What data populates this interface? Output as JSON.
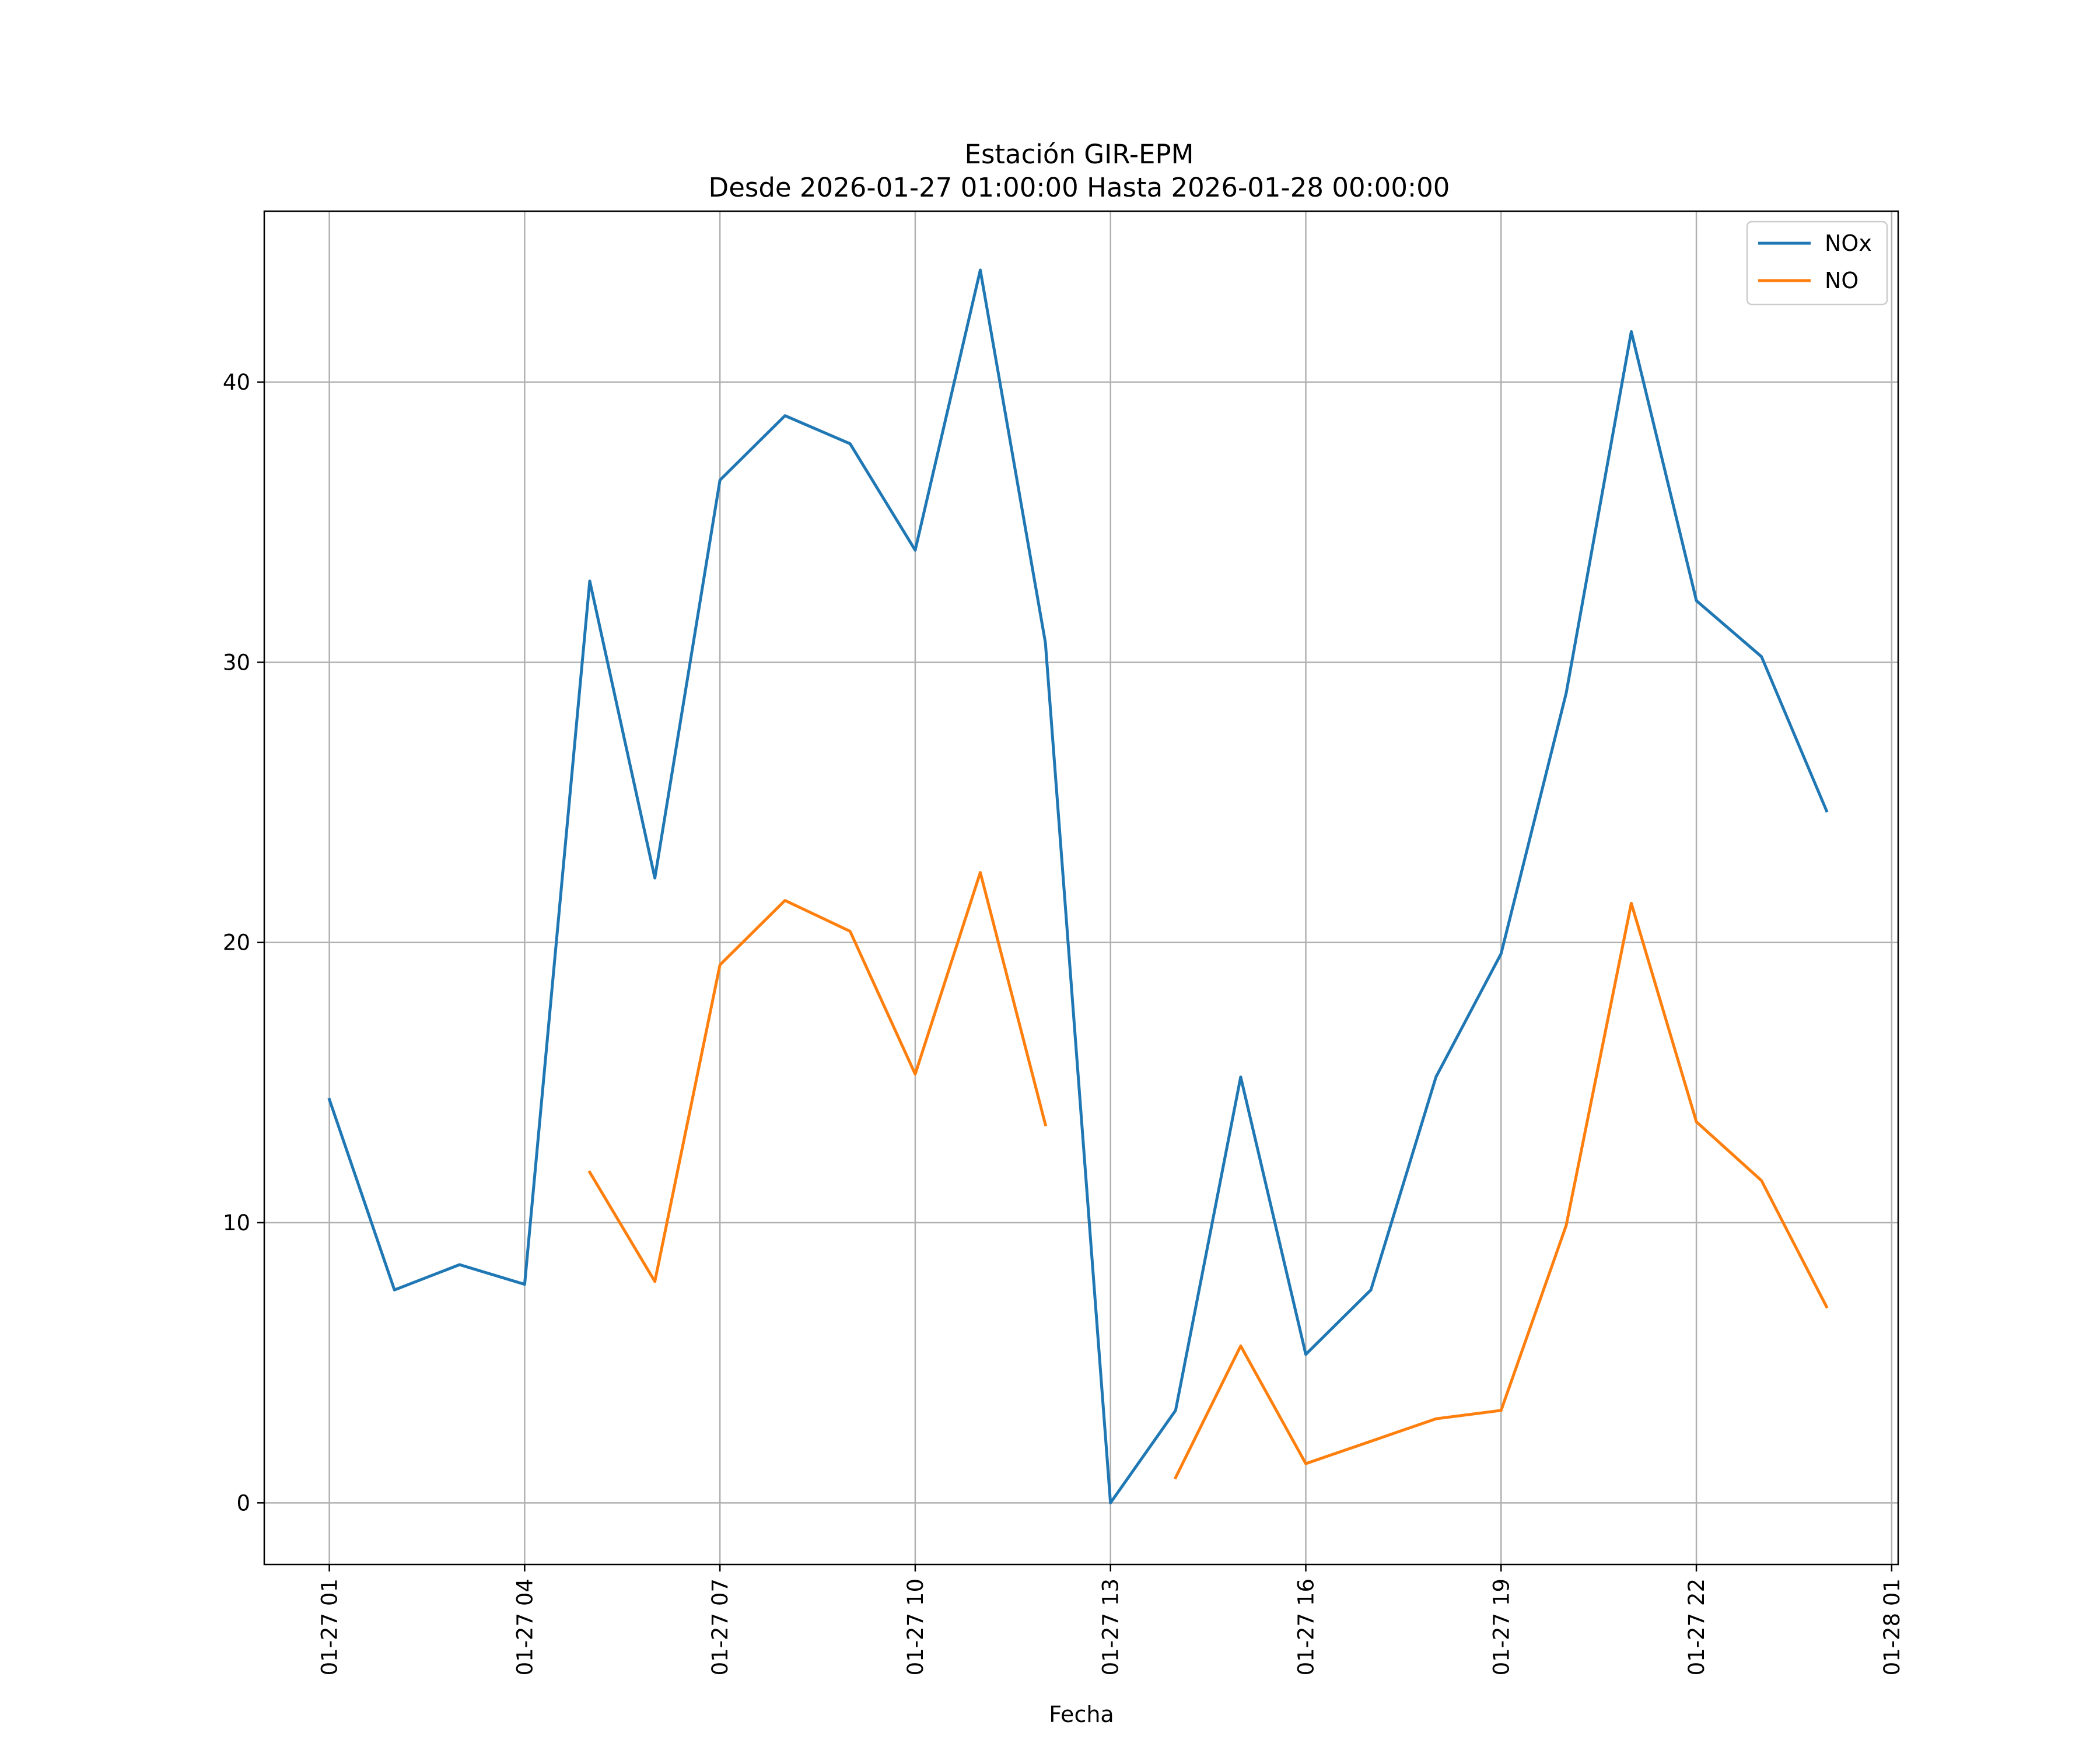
{
  "chart_data": {
    "type": "line",
    "title": "Estación GIR-EPM",
    "subtitle": "Desde 2026-01-27 01:00:00 Hasta 2026-01-28 00:00:00",
    "xlabel": "Fecha",
    "ylabel": "",
    "x": [
      "2026-01-27 01:00",
      "2026-01-27 02:00",
      "2026-01-27 03:00",
      "2026-01-27 04:00",
      "2026-01-27 05:00",
      "2026-01-27 06:00",
      "2026-01-27 07:00",
      "2026-01-27 08:00",
      "2026-01-27 09:00",
      "2026-01-27 10:00",
      "2026-01-27 11:00",
      "2026-01-27 12:00",
      "2026-01-27 13:00",
      "2026-01-27 14:00",
      "2026-01-27 15:00",
      "2026-01-27 16:00",
      "2026-01-27 17:00",
      "2026-01-27 18:00",
      "2026-01-27 19:00",
      "2026-01-27 20:00",
      "2026-01-27 21:00",
      "2026-01-27 22:00",
      "2026-01-27 23:00",
      "2026-01-28 00:00"
    ],
    "xlim": [
      "2026-01-27 00:00:00",
      "2026-01-28 01:06:00"
    ],
    "ylim": [
      -2.2,
      46.1
    ],
    "yticks": [
      0,
      10,
      20,
      30,
      40
    ],
    "xticks": [
      {
        "value": "2026-01-27 01:00",
        "label": "01-27 01"
      },
      {
        "value": "2026-01-27 04:00",
        "label": "01-27 04"
      },
      {
        "value": "2026-01-27 07:00",
        "label": "01-27 07"
      },
      {
        "value": "2026-01-27 10:00",
        "label": "01-27 10"
      },
      {
        "value": "2026-01-27 13:00",
        "label": "01-27 13"
      },
      {
        "value": "2026-01-27 16:00",
        "label": "01-27 16"
      },
      {
        "value": "2026-01-27 19:00",
        "label": "01-27 19"
      },
      {
        "value": "2026-01-27 22:00",
        "label": "01-27 22"
      },
      {
        "value": "2026-01-28 01:00",
        "label": "01-28 01"
      }
    ],
    "grid": true,
    "legend_position": "top-right",
    "series": [
      {
        "name": "NOx",
        "color": "#1f77b4",
        "values": [
          14.4,
          7.6,
          8.5,
          7.8,
          32.9,
          22.3,
          36.5,
          38.8,
          37.8,
          34.0,
          44.0,
          30.7,
          0.0,
          3.3,
          15.2,
          5.3,
          7.6,
          15.2,
          19.6,
          28.9,
          41.8,
          32.2,
          30.2,
          24.7
        ]
      },
      {
        "name": "NO",
        "color": "#ff7f0e",
        "values": [
          null,
          null,
          null,
          null,
          11.8,
          7.9,
          19.2,
          21.5,
          20.4,
          15.3,
          22.5,
          13.5,
          null,
          0.9,
          5.6,
          1.4,
          2.2,
          3.0,
          3.3,
          9.9,
          21.4,
          13.6,
          11.5,
          7.0
        ]
      }
    ]
  }
}
